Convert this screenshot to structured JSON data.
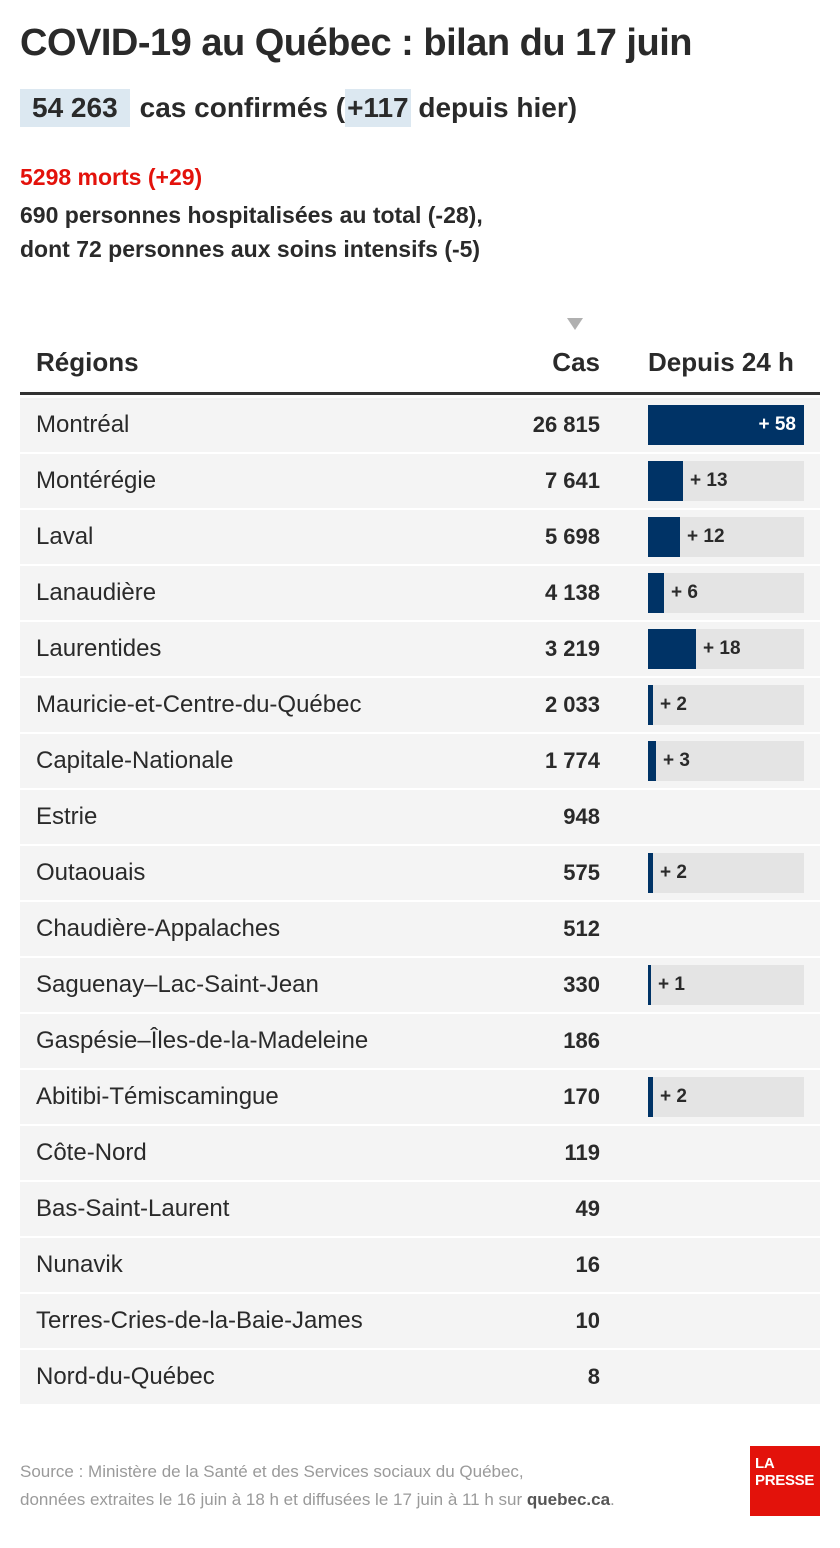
{
  "header": {
    "title": "COVID-19 au Québec : bilan du 17 juin",
    "total_cases": "54 263",
    "cases_text_before": "cas confirmés (",
    "new_cases": "+117",
    "cases_text_after": "depuis hier)",
    "deaths": "5298 morts (+29)",
    "hospitalized": "690 personnes hospitalisées au total (-28),",
    "intensive_care": "dont 72 personnes aux soins intensifs (-5)"
  },
  "table": {
    "columns": [
      "Régions",
      "Cas",
      "Depuis 24 h"
    ],
    "sort_column": "Cas"
  },
  "chart_data": {
    "type": "table",
    "max_change": 58,
    "rows": [
      {
        "region": "Montréal",
        "cases": "26 815",
        "change": 58,
        "change_label": "+ 58"
      },
      {
        "region": "Montérégie",
        "cases": "7 641",
        "change": 13,
        "change_label": "+ 13"
      },
      {
        "region": "Laval",
        "cases": "5 698",
        "change": 12,
        "change_label": "+ 12"
      },
      {
        "region": "Lanaudière",
        "cases": "4 138",
        "change": 6,
        "change_label": "+ 6"
      },
      {
        "region": "Laurentides",
        "cases": "3 219",
        "change": 18,
        "change_label": "+ 18"
      },
      {
        "region": "Mauricie-et-Centre-du-Québec",
        "cases": "2 033",
        "change": 2,
        "change_label": "+ 2"
      },
      {
        "region": "Capitale-Nationale",
        "cases": "1 774",
        "change": 3,
        "change_label": "+ 3"
      },
      {
        "region": "Estrie",
        "cases": "948",
        "change": 0,
        "change_label": ""
      },
      {
        "region": "Outaouais",
        "cases": "575",
        "change": 2,
        "change_label": "+ 2"
      },
      {
        "region": "Chaudière-Appalaches",
        "cases": "512",
        "change": 0,
        "change_label": ""
      },
      {
        "region": "Saguenay–Lac-Saint-Jean",
        "cases": "330",
        "change": 1,
        "change_label": "+ 1"
      },
      {
        "region": "Gaspésie–Îles-de-la-Madeleine",
        "cases": "186",
        "change": 0,
        "change_label": ""
      },
      {
        "region": "Abitibi-Témiscamingue",
        "cases": "170",
        "change": 2,
        "change_label": "+ 2"
      },
      {
        "region": "Côte-Nord",
        "cases": "119",
        "change": 0,
        "change_label": ""
      },
      {
        "region": "Bas-Saint-Laurent",
        "cases": "49",
        "change": 0,
        "change_label": ""
      },
      {
        "region": "Nunavik",
        "cases": "16",
        "change": 0,
        "change_label": ""
      },
      {
        "region": "Terres-Cries-de-la-Baie-James",
        "cases": "10",
        "change": 0,
        "change_label": ""
      },
      {
        "region": "Nord-du-Québec",
        "cases": "8",
        "change": 0,
        "change_label": ""
      }
    ]
  },
  "footer": {
    "source_line1": "Source : Ministère de la Santé et des Services sociaux du Québec,",
    "source_line2": "données extraites le 16 juin à 18 h et diffusées le 17 juin à 11 h sur",
    "source_link": "quebec.ca",
    "source_end": ".",
    "logo_line1": "LA",
    "logo_line2": "PRESSE"
  },
  "colors": {
    "bar": "#003366",
    "track": "#e4e4e4",
    "row_bg": "#f4f4f4",
    "highlight": "#dce8f1",
    "deaths": "#e3120b",
    "logo": "#e3120b"
  }
}
